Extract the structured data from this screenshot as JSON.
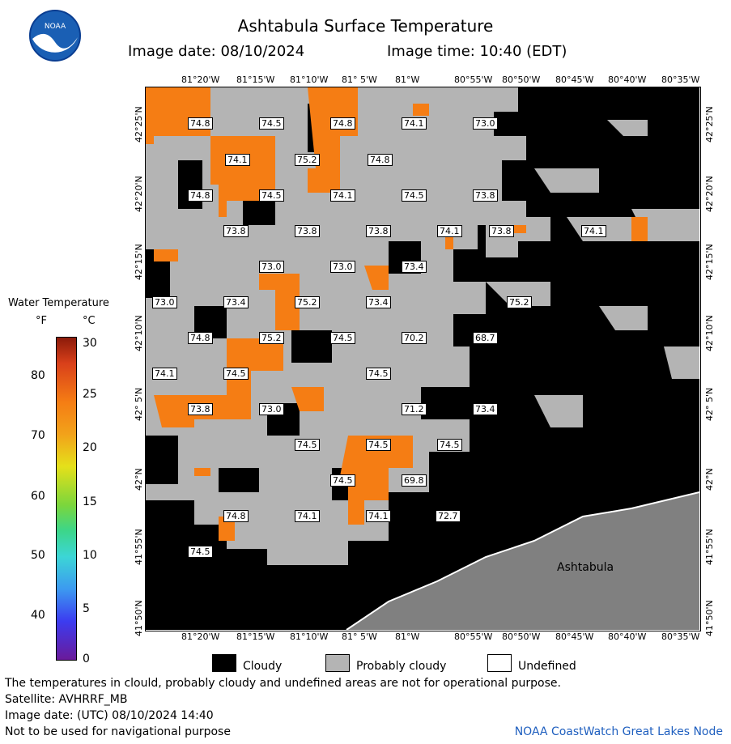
{
  "header": {
    "title": "Ashtabula Surface Temperature",
    "image_date": "Image date: 08/10/2024",
    "image_time": "Image time: 10:40 (EDT)"
  },
  "logo": {
    "text": "NOAA"
  },
  "map": {
    "lon_labels": [
      "81°20'W",
      "81°15'W",
      "81°10'W",
      "81° 5'W",
      "81°W",
      "80°55'W",
      "80°50'W",
      "80°45'W",
      "80°40'W",
      "80°35'W"
    ],
    "lat_labels": [
      "42°25'N",
      "42°20'N",
      "42°15'N",
      "42°10'N",
      "42° 5'N",
      "42°N",
      "41°55'N",
      "41°50'N"
    ],
    "place_label": "Ashtabula",
    "temps": [
      "74.8",
      "74.5",
      "74.8",
      "74.1",
      "73.0",
      "74.1",
      "75.2",
      "74.8",
      "74.8",
      "74.5",
      "74.1",
      "74.5",
      "73.8",
      "73.8",
      "73.8",
      "73.8",
      "74.1",
      "73.8",
      "74.1",
      "73.0",
      "73.0",
      "73.4",
      "73.0",
      "73.4",
      "75.2",
      "73.4",
      "75.2",
      "74.8",
      "75.2",
      "74.5",
      "70.2",
      "68.7",
      "74.1",
      "74.5",
      "74.5",
      "73.8",
      "73.0",
      "71.2",
      "73.4",
      "74.5",
      "74.5",
      "74.5",
      "74.5",
      "69.8",
      "74.8",
      "74.1",
      "74.1",
      "72.7",
      "74.5"
    ],
    "colors": {
      "cloudy": "#000000",
      "probably_cloudy": "#b4b4b4",
      "water": "#f57d14",
      "land": "#808080"
    }
  },
  "colorbar": {
    "title": "Water Temperature",
    "unit_f": "°F",
    "unit_c": "°C",
    "f_ticks": [
      "80",
      "70",
      "60",
      "50",
      "40"
    ],
    "c_ticks": [
      "30",
      "25",
      "20",
      "15",
      "10",
      "5",
      "0"
    ]
  },
  "legend": {
    "cloudy": "Cloudy",
    "probably_cloudy": "Probably cloudy",
    "undefined": "Undefined"
  },
  "footer": {
    "line1": "The temperatures in clould, probably cloudy and undefined areas are not for operational purpose.",
    "line2": "Satellite: AVHRRF_MB",
    "line3": "Image date: (UTC) 08/10/2024  14:40",
    "line4": "Not to be used for navigational purpose",
    "credit": "NOAA CoastWatch Great Lakes Node"
  }
}
